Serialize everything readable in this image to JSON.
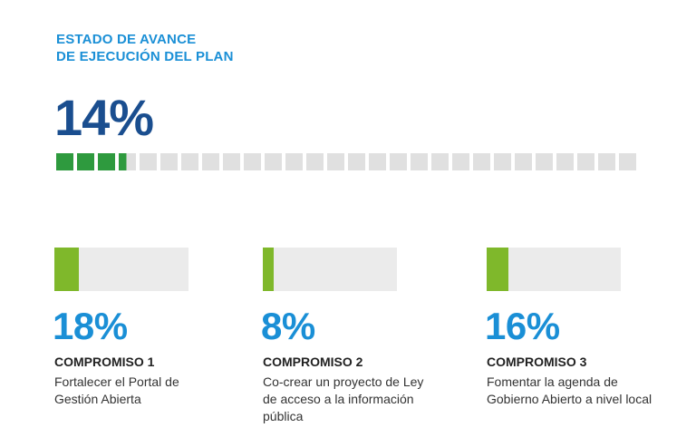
{
  "header": {
    "title_line1": "ESTADO DE AVANCE",
    "title_line2": "DE EJECUCIÓN DEL PLAN"
  },
  "overall": {
    "percent_label": "14%",
    "progress": 0.14,
    "segments_total": 28,
    "colors": {
      "filled": "#2e9a3e",
      "empty": "#e0e0e0"
    }
  },
  "commitments": [
    {
      "percent_label": "18%",
      "progress": 0.18,
      "title": "COMPROMISO 1",
      "description": "Fortalecer el Portal de Gestión Abierta"
    },
    {
      "percent_label": "8%",
      "progress": 0.08,
      "title": "COMPROMISO 2",
      "description": "Co-crear un proyecto de Ley de acceso a la información pública"
    },
    {
      "percent_label": "16%",
      "progress": 0.16,
      "title": "COMPROMISO 3",
      "description": "Fomentar la agenda de Gobierno Abierto a nivel local"
    }
  ],
  "colors": {
    "title_blue": "#1a8fd6",
    "overall_percent_navy": "#1a4e8f",
    "commitment_fill_green": "#7fb82b",
    "commitment_track_gray": "#ebebeb"
  }
}
